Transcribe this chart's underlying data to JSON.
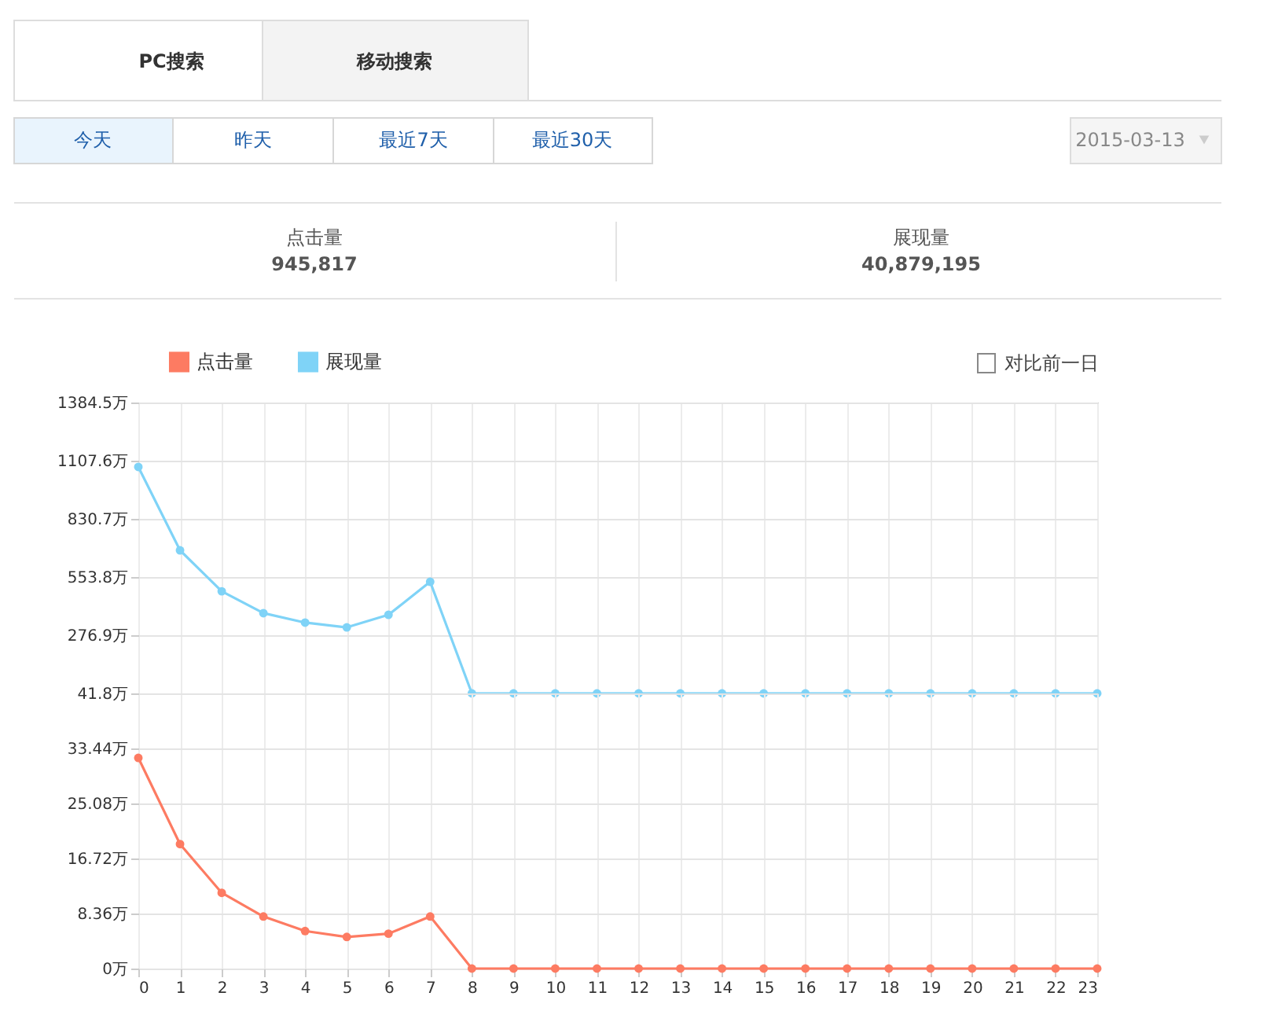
{
  "chart_data": [
    {
      "type": "other",
      "annotations": [
        "PC搜索",
        "移动搜索",
        "今天",
        "昨天",
        "最近7天",
        "最近30天",
        "2015-03-13",
        "点击量",
        "945,817",
        "展现量",
        "40,879,195",
        "对比前一日"
      ]
    },
    {
      "type": "line",
      "x": [
        0,
        1,
        2,
        3,
        4,
        5,
        6,
        7,
        8,
        9,
        10,
        11,
        12,
        13,
        14,
        15,
        16,
        17,
        18,
        19,
        20,
        21,
        22,
        23
      ],
      "xlim": [
        0,
        23
      ],
      "xticks": [
        0,
        1,
        2,
        3,
        4,
        5,
        6,
        7,
        8,
        9,
        10,
        11,
        12,
        13,
        14,
        15,
        16,
        17,
        18,
        19,
        20,
        21,
        22,
        23
      ],
      "ylim": [
        0,
        1384.5
      ],
      "yticks": [
        {
          "value": 276.9,
          "label": "276.9万"
        },
        {
          "value": 553.8,
          "label": "553.8万"
        },
        {
          "value": 830.7,
          "label": "830.7万"
        },
        {
          "value": 1107.6,
          "label": "1107.6万"
        },
        {
          "value": 1384.5,
          "label": "1384.5万"
        }
      ],
      "series": [
        {
          "name": "展现量",
          "color": "#7fd3f7",
          "values": [
            1078,
            681,
            486,
            382,
            337,
            314,
            374,
            531,
            0,
            0,
            0,
            0,
            0,
            0,
            0,
            0,
            0,
            0,
            0,
            0,
            0,
            0,
            0,
            0
          ]
        }
      ],
      "grid": true,
      "legend": "top left",
      "marker": "circle",
      "line_style": "solid",
      "tick_labels": "y"
    },
    {
      "type": "line",
      "x": [
        0,
        1,
        2,
        3,
        4,
        5,
        6,
        7,
        8,
        9,
        10,
        11,
        12,
        13,
        14,
        15,
        16,
        17,
        18,
        19,
        20,
        21,
        22,
        23
      ],
      "xlim": [
        0,
        23
      ],
      "xticks": [
        0,
        1,
        2,
        3,
        4,
        5,
        6,
        7,
        8,
        9,
        10,
        11,
        12,
        13,
        14,
        15,
        16,
        17,
        18,
        19,
        20,
        21,
        22,
        23
      ],
      "ylim": [
        0,
        41.8
      ],
      "yticks": [
        {
          "value": 0,
          "label": "0万"
        },
        {
          "value": 8.36,
          "label": "8.36万"
        },
        {
          "value": 16.72,
          "label": "16.72万"
        },
        {
          "value": 25.08,
          "label": "25.08万"
        },
        {
          "value": 33.44,
          "label": "33.44万"
        },
        {
          "value": 41.8,
          "label": "41.8万"
        }
      ],
      "series": [
        {
          "name": "点击量",
          "color": "#fd7b62",
          "values": [
            32.0,
            18.9,
            11.5,
            7.9,
            5.7,
            4.8,
            5.3,
            7.9,
            0,
            0,
            0,
            0,
            0,
            0,
            0,
            0,
            0,
            0,
            0,
            0,
            0,
            0,
            0,
            0
          ]
        }
      ],
      "grid": true,
      "legend": "top left",
      "marker": "circle",
      "line_style": "solid"
    }
  ]
}
